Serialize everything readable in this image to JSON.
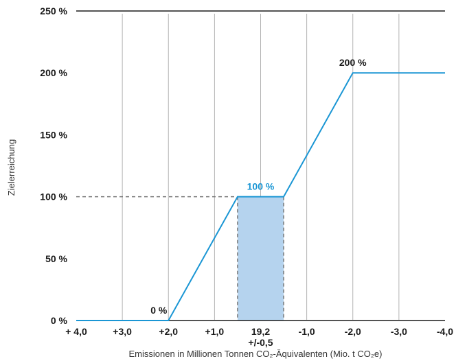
{
  "chart_data": {
    "type": "line",
    "xlabel": "Emissionen in Millionen Tonnen CO₂-Äquivalenten (Mio. t CO₂e)",
    "ylabel": "Zielerreichung",
    "x_tick_labels": [
      "+ 4,0",
      "+3,0",
      "+2,0",
      "+1,0",
      "19,2",
      "-1,0",
      "-2,0",
      "-3,0",
      "-4,0"
    ],
    "center_sublabel": "+/-0,5",
    "y_tick_labels": [
      "0 %",
      "50 %",
      "100 %",
      "150 %",
      "200 %",
      "250 %"
    ],
    "highlight_y_tick": "100 %",
    "xlim": [
      4,
      -4
    ],
    "ylim": [
      0,
      250
    ],
    "grid": "vertical",
    "series": [
      {
        "x": [
          4.0,
          2.0,
          0.5,
          -0.5,
          -2.0,
          -4.0
        ],
        "y": [
          0,
          0,
          100,
          100,
          200,
          200
        ]
      }
    ],
    "target_band": {
      "x": [
        0.5,
        -0.5
      ]
    },
    "reference_line": {
      "y": 100
    },
    "annotations": [
      {
        "text": "0 %",
        "x": 2.0,
        "y": 0,
        "color": "dark"
      },
      {
        "text": "100 %",
        "x": 0,
        "y": 100,
        "color": "accent"
      },
      {
        "text": "200 %",
        "x": -2.0,
        "y": 200,
        "color": "dark"
      }
    ],
    "colors": {
      "line": "#1a96d4",
      "band": "#b5d3ee",
      "accent": "#1a96d4",
      "axis": "#1a1a1a",
      "grid": "#b3b3b3",
      "dashed": "#777777",
      "text": "#1a1a1a"
    }
  }
}
